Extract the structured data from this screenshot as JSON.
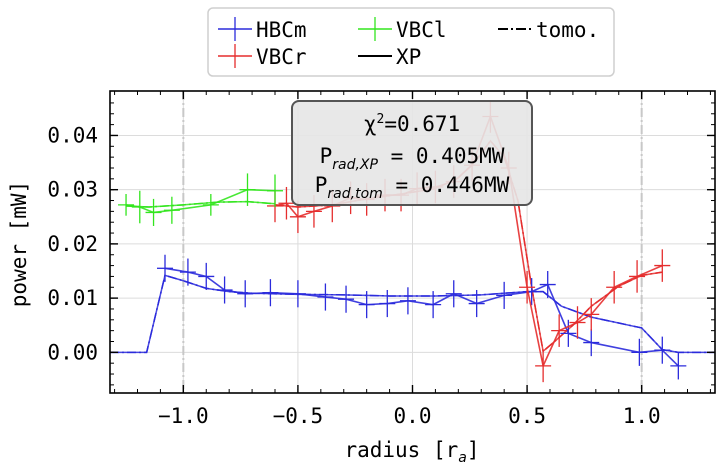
{
  "chart_data": {
    "type": "line",
    "xlabel": "radius [r",
    "xlabel_sub": "a",
    "xlabel_end": "]",
    "ylabel": "power [mW]",
    "xlim": [
      -1.32,
      1.32
    ],
    "ylim": [
      -0.0075,
      0.0482
    ],
    "xticks": [
      -1.0,
      -0.5,
      0.0,
      0.5,
      1.0
    ],
    "xtick_labels": [
      "−1.0",
      "−0.5",
      "0.0",
      "0.5",
      "1.0"
    ],
    "yticks": [
      0.0,
      0.01,
      0.02,
      0.03,
      0.04
    ],
    "ytick_labels": [
      "0.00",
      "0.01",
      "0.02",
      "0.03",
      "0.04"
    ],
    "vlines": [
      -1.0,
      1.0
    ],
    "grid": true,
    "legend_placement": "top-center (outside)",
    "annotation": {
      "chi_label": "χ",
      "chi_sup": "2",
      "chi_value": "=0.671",
      "line2_main": "P",
      "line2_sub": "rad,XP",
      "line2_value": " = 0.405MW",
      "line3_main": "P",
      "line3_sub": "rad,tom",
      "line3_value": " = 0.446MW"
    },
    "series": [
      {
        "name": "HBCm",
        "color": "#2b2bdc",
        "style": "measured",
        "x": [
          -1.08,
          -0.98,
          -0.9,
          -0.82,
          -0.73,
          -0.62,
          -0.5,
          -0.38,
          -0.29,
          -0.2,
          -0.11,
          -0.02,
          0.09,
          0.18,
          0.28,
          0.4,
          0.52,
          0.59,
          0.68,
          0.78,
          0.99,
          1.09,
          1.16
        ],
        "y": [
          0.0155,
          0.0148,
          0.014,
          0.0115,
          0.0108,
          0.011,
          0.0108,
          0.0102,
          0.0098,
          0.0088,
          0.009,
          0.0095,
          0.0088,
          0.0108,
          0.009,
          0.0105,
          0.0112,
          0.0125,
          0.0035,
          0.0018,
          0.0,
          0.0004,
          -0.0025
        ],
        "err": [
          0.0025,
          0.0025,
          0.0025,
          0.0025,
          0.0025,
          0.0025,
          0.0025,
          0.0025,
          0.0025,
          0.0025,
          0.0025,
          0.0025,
          0.0025,
          0.0025,
          0.0025,
          0.0025,
          0.0025,
          0.0025,
          0.0025,
          0.0025,
          0.0025,
          0.0025,
          0.0025
        ]
      },
      {
        "name": "VBCr",
        "color": "#e52d2d",
        "style": "measured",
        "x": [
          -0.6,
          -0.55,
          -0.5,
          -0.43,
          -0.35,
          -0.27,
          -0.2,
          -0.12,
          -0.05,
          0.02,
          0.1,
          0.18,
          0.26,
          0.34,
          0.42,
          0.5,
          0.57,
          0.64,
          0.72,
          0.78,
          0.88,
          0.98,
          1.09
        ],
        "y": [
          0.027,
          0.0275,
          0.025,
          0.026,
          0.027,
          0.0285,
          0.0282,
          0.029,
          0.029,
          0.0302,
          0.0305,
          0.0315,
          0.0345,
          0.0435,
          0.034,
          0.012,
          -0.0025,
          0.004,
          0.0055,
          0.007,
          0.012,
          0.014,
          0.016
        ],
        "err": [
          0.003,
          0.003,
          0.003,
          0.003,
          0.003,
          0.003,
          0.003,
          0.003,
          0.003,
          0.003,
          0.003,
          0.003,
          0.003,
          0.003,
          0.003,
          0.003,
          0.003,
          0.003,
          0.003,
          0.003,
          0.003,
          0.003,
          0.003
        ]
      },
      {
        "name": "VBCl",
        "color": "#33e51e",
        "style": "measured",
        "x": [
          -1.25,
          -1.19,
          -1.13,
          -1.05,
          -0.88,
          -0.72,
          -0.6
        ],
        "y": [
          0.0272,
          0.0268,
          0.0258,
          0.0262,
          0.0272,
          0.03,
          0.0298
        ],
        "err": [
          0.002,
          0.003,
          0.0025,
          0.0025,
          0.002,
          0.003,
          0.003
        ]
      },
      {
        "name": "XP",
        "color": "#000000",
        "style": "solid"
      },
      {
        "name": "tomo.",
        "color": "#000000",
        "style": "dashdot"
      }
    ],
    "fits": [
      {
        "color": "#2b2bdc",
        "x": [
          -1.32,
          -1.22,
          -1.16,
          -1.08,
          -1.0,
          -0.9,
          -0.8,
          -0.7,
          -0.5,
          -0.3,
          -0.1,
          0.1,
          0.3,
          0.5,
          0.57,
          0.65,
          0.78,
          1.0,
          1.09,
          1.16,
          1.32
        ],
        "y": [
          0.0,
          0.0,
          0.0,
          0.0142,
          0.0132,
          0.0118,
          0.0112,
          0.0109,
          0.0107,
          0.0106,
          0.0104,
          0.0104,
          0.0106,
          0.0112,
          0.0112,
          0.0085,
          0.0065,
          0.0045,
          0.0005,
          0.0,
          0.0
        ]
      },
      {
        "color": "#e52d2d",
        "x": [
          -0.6,
          -0.5,
          -0.35,
          -0.2,
          -0.05,
          0.1,
          0.2,
          0.28,
          0.34,
          0.4,
          0.46,
          0.52,
          0.57,
          0.62,
          0.7,
          0.78,
          0.9,
          1.0,
          1.09
        ],
        "y": [
          0.0272,
          0.0268,
          0.0272,
          0.0283,
          0.0292,
          0.0302,
          0.0322,
          0.0355,
          0.039,
          0.036,
          0.028,
          0.012,
          0.0002,
          0.002,
          0.005,
          0.0085,
          0.0122,
          0.0142,
          0.0148
        ]
      },
      {
        "color": "#33e51e",
        "x": [
          -1.25,
          -1.15,
          -1.0,
          -0.85,
          -0.72,
          -0.6
        ],
        "y": [
          0.027,
          0.0268,
          0.0272,
          0.0277,
          0.0278,
          0.0274
        ]
      }
    ]
  }
}
